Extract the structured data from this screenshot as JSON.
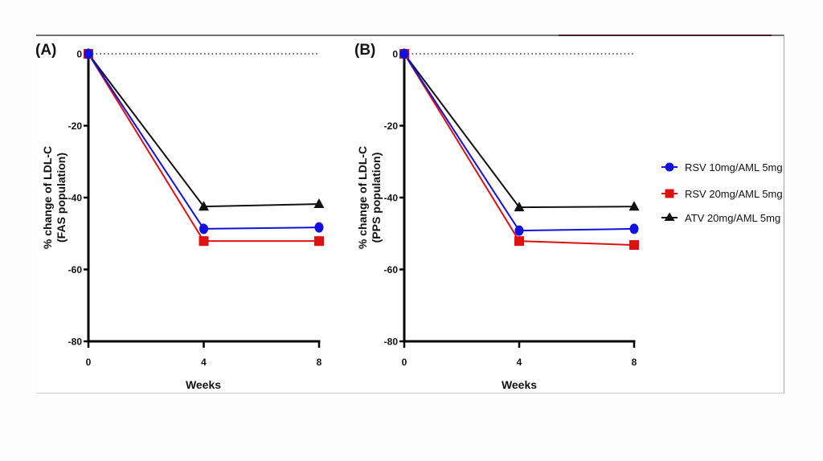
{
  "chart_data": [
    {
      "type": "line",
      "panel_label": "(A)",
      "title": "",
      "xlabel": "Weeks",
      "ylabel": "% change of LDL-C\n(FAS population)",
      "ylabel_lines": [
        "% change of LDL-C",
        "(FAS population)"
      ],
      "x": [
        0,
        4,
        8
      ],
      "x_ticks": [
        "0",
        "4",
        "8"
      ],
      "y_ticks": [
        "0",
        "-20",
        "-40",
        "-60",
        "-80"
      ],
      "y_tick_values": [
        0,
        -20,
        -40,
        -60,
        -80
      ],
      "ylim": [
        -80,
        0
      ],
      "xlim": [
        0,
        8
      ],
      "reference_line": {
        "y": 0,
        "style": "dotted"
      },
      "grid": false,
      "series": [
        {
          "name": "RSV 10mg/AML 5mg",
          "values": [
            0,
            -48.7,
            -48.3
          ],
          "color": "#1010e0",
          "marker": "circle"
        },
        {
          "name": "RSV 20mg/AML 5mg",
          "values": [
            0,
            -52.1,
            -52.1
          ],
          "color": "#e01010",
          "marker": "square"
        },
        {
          "name": "ATV 20mg/AML 5mg",
          "values": [
            0,
            -42.5,
            -41.8
          ],
          "color": "#111111",
          "marker": "triangle"
        }
      ]
    },
    {
      "type": "line",
      "panel_label": "(B)",
      "title": "",
      "xlabel": "Weeks",
      "ylabel": "% change of LDL-C\n(PPS population)",
      "ylabel_lines": [
        "% change of LDL-C",
        "(PPS population)"
      ],
      "x": [
        0,
        4,
        8
      ],
      "x_ticks": [
        "0",
        "4",
        "8"
      ],
      "y_ticks": [
        "0",
        "-20",
        "-40",
        "-60",
        "-80"
      ],
      "y_tick_values": [
        0,
        -20,
        -40,
        -60,
        -80
      ],
      "ylim": [
        -80,
        0
      ],
      "xlim": [
        0,
        8
      ],
      "reference_line": {
        "y": 0,
        "style": "dotted"
      },
      "grid": false,
      "series": [
        {
          "name": "RSV 10mg/AML 5mg",
          "values": [
            0,
            -49.2,
            -48.7
          ],
          "color": "#1010e0",
          "marker": "circle"
        },
        {
          "name": "RSV 20mg/AML 5mg",
          "values": [
            0,
            -52.1,
            -53.2
          ],
          "color": "#e01010",
          "marker": "square"
        },
        {
          "name": "ATV 20mg/AML 5mg",
          "values": [
            0,
            -42.7,
            -42.5
          ],
          "color": "#111111",
          "marker": "triangle"
        }
      ]
    }
  ],
  "legend": {
    "placement": "right",
    "entries": [
      {
        "label": "RSV 10mg/AML 5mg",
        "color": "#1010e0",
        "marker": "circle"
      },
      {
        "label": "RSV 20mg/AML 5mg",
        "color": "#e01010",
        "marker": "square"
      },
      {
        "label": "ATV 20mg/AML 5mg",
        "color": "#111111",
        "marker": "triangle"
      }
    ]
  }
}
